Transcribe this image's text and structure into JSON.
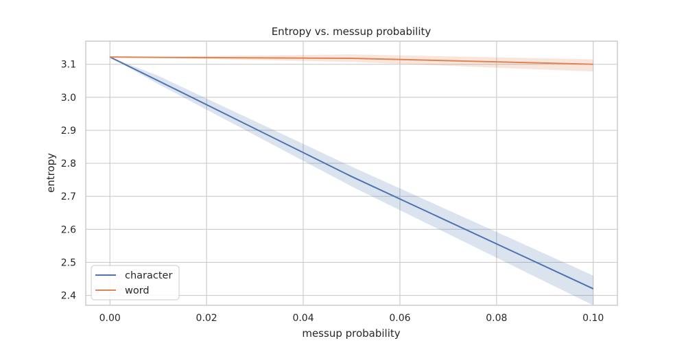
{
  "chart_data": {
    "type": "line",
    "title": "Entropy vs. messup probability",
    "xlabel": "messup probability",
    "ylabel": "entropy",
    "xlim": [
      -0.005,
      0.105
    ],
    "ylim": [
      2.37,
      3.17
    ],
    "xticks": [
      0.0,
      0.02,
      0.04,
      0.06,
      0.08,
      0.1
    ],
    "xtick_labels": [
      "0.00",
      "0.02",
      "0.04",
      "0.06",
      "0.08",
      "0.10"
    ],
    "yticks": [
      2.4,
      2.5,
      2.6,
      2.7,
      2.8,
      2.9,
      3.0,
      3.1
    ],
    "ytick_labels": [
      "2.4",
      "2.5",
      "2.6",
      "2.7",
      "2.8",
      "2.9",
      "3.0",
      "3.1"
    ],
    "grid": true,
    "legend_position": "bottom-left",
    "series": [
      {
        "name": "character",
        "color": "#4c72b0",
        "x": [
          0.0,
          0.01,
          0.05,
          0.1
        ],
        "y": [
          3.122,
          3.05,
          2.76,
          2.42
        ],
        "ci_low": [
          3.122,
          3.04,
          2.73,
          2.37
        ],
        "ci_high": [
          3.122,
          3.065,
          2.79,
          2.46
        ]
      },
      {
        "name": "word",
        "color": "#dd8452",
        "x": [
          0.0,
          0.01,
          0.05,
          0.1
        ],
        "y": [
          3.122,
          3.121,
          3.118,
          3.1
        ],
        "ci_low": [
          3.122,
          3.119,
          3.107,
          3.078
        ],
        "ci_high": [
          3.122,
          3.123,
          3.13,
          3.115
        ]
      }
    ]
  }
}
